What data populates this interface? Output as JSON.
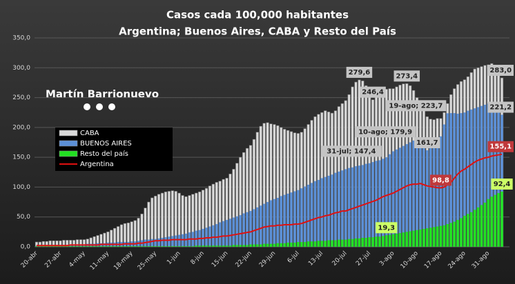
{
  "chart_data": {
    "type": "bar",
    "title": "Casos cada 100,000 habitantes",
    "subtitle": "Argentina; Buenos Aires, CABA y Resto del País",
    "brand": "Martín Barrionuevo",
    "ylim": [
      0,
      350
    ],
    "yticks": [
      {
        "value": 0,
        "label": "0,0"
      },
      {
        "value": 50,
        "label": "50,0"
      },
      {
        "value": 100,
        "label": "100,0"
      },
      {
        "value": 150,
        "label": "150,0"
      },
      {
        "value": 200,
        "label": "200,0"
      },
      {
        "value": 250,
        "label": "250,0"
      },
      {
        "value": 300,
        "label": "300,0"
      },
      {
        "value": 350,
        "label": "350,0"
      }
    ],
    "grid": true,
    "categories": [
      "20-abr",
      null,
      null,
      null,
      null,
      null,
      null,
      "27-abr",
      null,
      null,
      null,
      null,
      null,
      null,
      "4-may",
      null,
      null,
      null,
      null,
      null,
      null,
      "11-may",
      null,
      null,
      null,
      null,
      null,
      null,
      "18-may",
      null,
      null,
      null,
      null,
      null,
      null,
      "25-may",
      null,
      null,
      null,
      null,
      null,
      null,
      "1-jun",
      null,
      null,
      null,
      null,
      null,
      null,
      "8-jun",
      null,
      null,
      null,
      null,
      null,
      null,
      "15-jun",
      null,
      null,
      null,
      null,
      null,
      null,
      "22-jun",
      null,
      null,
      null,
      null,
      null,
      null,
      "29-jun",
      null,
      null,
      null,
      null,
      null,
      null,
      "6-jul",
      null,
      null,
      null,
      null,
      null,
      null,
      "13-jul",
      null,
      null,
      null,
      null,
      null,
      null,
      "20-jul",
      null,
      null,
      null,
      null,
      null,
      null,
      "27-jul",
      null,
      null,
      null,
      null,
      null,
      null,
      "3-ago",
      null,
      null,
      null,
      null,
      null,
      null,
      "10-ago",
      null,
      null,
      null,
      null,
      null,
      null,
      "17-ago",
      null,
      null,
      null,
      null,
      null,
      null,
      "24-ago",
      null,
      null,
      null,
      null,
      null,
      null,
      "31-ago",
      null,
      null,
      null,
      null
    ],
    "series": [
      {
        "name": "CABA",
        "color": "#d9d9d9",
        "kind": "bar",
        "values": [
          8,
          8,
          9,
          9,
          10,
          10,
          10,
          10,
          11,
          11,
          11,
          11,
          12,
          12,
          12,
          13,
          15,
          17,
          19,
          21,
          23,
          25,
          28,
          31,
          34,
          37,
          39,
          40,
          42,
          44,
          48,
          55,
          65,
          75,
          82,
          85,
          88,
          90,
          92,
          93,
          94,
          93,
          90,
          86,
          84,
          86,
          88,
          90,
          92,
          95,
          98,
          102,
          105,
          108,
          110,
          113,
          115,
          122,
          130,
          140,
          150,
          158,
          165,
          170,
          180,
          192,
          202,
          207,
          208,
          206,
          205,
          203,
          200,
          197,
          195,
          193,
          191,
          190,
          192,
          198,
          205,
          212,
          218,
          222,
          225,
          228,
          226,
          224,
          228,
          235,
          240,
          245,
          255,
          268,
          276,
          279.6,
          278,
          270,
          262,
          246.4,
          252,
          258,
          262,
          264,
          265,
          265,
          268,
          271,
          273,
          273.4,
          270,
          262,
          250,
          240,
          228,
          218,
          214,
          213,
          215,
          215,
          225,
          240,
          255,
          265,
          272,
          277,
          280,
          285,
          292,
          298,
          300,
          302,
          304,
          305,
          307,
          300,
          292,
          283
        ],
        "value_labels": [
          null,
          null,
          null,
          null,
          null,
          null,
          null,
          null,
          null,
          null,
          null,
          null,
          null,
          null,
          null,
          null,
          null,
          null,
          null,
          null,
          null,
          null,
          null,
          null,
          null,
          null,
          null,
          null,
          null,
          null,
          null,
          null,
          null,
          null,
          null,
          null,
          null,
          null,
          null,
          null,
          null,
          null,
          null,
          null,
          null,
          null,
          null,
          null,
          null,
          null,
          null,
          null,
          null,
          null,
          null,
          null,
          null,
          null,
          null,
          null,
          null,
          null,
          null,
          null,
          null,
          null,
          null,
          null,
          null,
          null,
          null,
          null,
          null,
          null,
          null,
          null,
          null,
          null,
          null,
          null,
          null,
          null,
          null,
          null,
          null,
          null,
          null,
          null,
          null,
          null,
          null,
          null,
          null,
          null,
          null,
          "279,6",
          null,
          null,
          null,
          "246,4",
          null,
          null,
          null,
          null,
          null,
          null,
          null,
          null,
          null,
          "273,4",
          null,
          null,
          null,
          null,
          null,
          null,
          null,
          null,
          null,
          null,
          null,
          null,
          null,
          null,
          null,
          null,
          null,
          null,
          null,
          null,
          null,
          null,
          null,
          null,
          null,
          null,
          null,
          "283,0"
        ]
      },
      {
        "name": "BUENOS AIRES",
        "color": "#5b8fd6",
        "kind": "bar",
        "values": [
          2,
          2,
          2,
          3,
          3,
          3,
          3,
          3,
          3,
          3,
          4,
          4,
          4,
          4,
          4,
          5,
          5,
          5,
          6,
          6,
          6,
          7,
          7,
          7,
          8,
          8,
          8,
          8,
          9,
          9,
          10,
          11,
          12,
          12,
          13,
          13,
          14,
          15,
          16,
          17,
          18,
          19,
          20,
          21,
          22,
          24,
          25,
          27,
          28,
          30,
          32,
          34,
          36,
          38,
          41,
          43,
          45,
          47,
          49,
          51,
          53,
          56,
          58,
          60,
          63,
          66,
          69,
          72,
          75,
          78,
          80,
          82,
          85,
          87,
          89,
          91,
          93,
          95,
          98,
          101,
          104,
          107,
          110,
          112,
          115,
          117,
          119,
          121,
          124,
          126,
          128,
          130,
          132,
          133,
          135,
          136,
          137,
          139,
          140,
          142,
          144,
          145,
          147.4,
          150,
          155,
          160,
          163,
          166,
          169,
          172,
          175,
          178,
          179.9,
          175,
          168,
          161.7,
          170,
          178,
          183,
          185,
          205,
          223.7,
          224,
          224,
          223,
          224,
          225,
          228,
          230,
          232,
          234,
          236,
          238,
          240,
          238,
          232,
          226,
          221.2
        ],
        "value_labels": [
          null,
          null,
          null,
          null,
          null,
          null,
          null,
          null,
          null,
          null,
          null,
          null,
          null,
          null,
          null,
          null,
          null,
          null,
          null,
          null,
          null,
          null,
          null,
          null,
          null,
          null,
          null,
          null,
          null,
          null,
          null,
          null,
          null,
          null,
          null,
          null,
          null,
          null,
          null,
          null,
          null,
          null,
          null,
          null,
          null,
          null,
          null,
          null,
          null,
          null,
          null,
          null,
          null,
          null,
          null,
          null,
          null,
          null,
          null,
          null,
          null,
          null,
          null,
          null,
          null,
          null,
          null,
          null,
          null,
          null,
          null,
          null,
          null,
          null,
          null,
          null,
          null,
          null,
          null,
          null,
          null,
          null,
          null,
          null,
          null,
          null,
          null,
          null,
          null,
          null,
          null,
          null,
          null,
          null,
          null,
          null,
          null,
          null,
          null,
          null,
          null,
          null,
          "31-jul; 147,4",
          null,
          null,
          null,
          null,
          null,
          null,
          null,
          null,
          null,
          "10-ago; 179,9",
          null,
          null,
          "161,7",
          null,
          null,
          null,
          null,
          null,
          "19-ago; 223,7",
          null,
          null,
          null,
          null,
          null,
          null,
          null,
          null,
          null,
          null,
          null,
          null,
          null,
          null,
          null,
          "221,2"
        ]
      },
      {
        "name": "Resto del país",
        "color": "#22e022",
        "kind": "bar",
        "values": [
          1,
          1,
          1,
          1,
          1,
          1,
          1,
          1,
          1,
          1,
          1,
          1,
          1,
          1,
          1,
          1,
          1,
          1,
          1,
          1,
          1,
          1,
          1,
          1,
          1,
          1,
          1,
          1,
          1,
          1,
          1,
          1,
          1,
          1,
          1,
          1,
          1,
          1,
          1,
          1,
          1,
          1,
          1,
          1,
          1,
          1,
          1,
          2,
          2,
          2,
          2,
          2,
          2,
          2,
          2,
          2,
          2,
          2,
          3,
          3,
          3,
          3,
          3,
          4,
          4,
          4,
          4,
          5,
          5,
          5,
          5,
          6,
          6,
          6,
          7,
          7,
          7,
          8,
          8,
          8,
          9,
          9,
          9,
          10,
          10,
          10,
          11,
          11,
          11,
          12,
          12,
          12,
          13,
          13,
          14,
          14,
          15,
          15,
          16,
          16,
          17,
          17,
          18,
          19.3,
          20,
          21,
          22,
          23,
          24,
          25,
          26,
          27,
          28,
          29,
          30,
          31,
          32,
          33,
          34,
          35,
          36,
          38,
          40,
          42,
          45,
          48,
          52,
          55,
          58,
          62,
          66,
          70,
          74,
          80,
          84,
          87,
          90,
          92.4
        ],
        "value_labels": [
          null,
          null,
          null,
          null,
          null,
          null,
          null,
          null,
          null,
          null,
          null,
          null,
          null,
          null,
          null,
          null,
          null,
          null,
          null,
          null,
          null,
          null,
          null,
          null,
          null,
          null,
          null,
          null,
          null,
          null,
          null,
          null,
          null,
          null,
          null,
          null,
          null,
          null,
          null,
          null,
          null,
          null,
          null,
          null,
          null,
          null,
          null,
          null,
          null,
          null,
          null,
          null,
          null,
          null,
          null,
          null,
          null,
          null,
          null,
          null,
          null,
          null,
          null,
          null,
          null,
          null,
          null,
          null,
          null,
          null,
          null,
          null,
          null,
          null,
          null,
          null,
          null,
          null,
          null,
          null,
          null,
          null,
          null,
          null,
          null,
          null,
          null,
          null,
          null,
          null,
          null,
          null,
          null,
          null,
          null,
          null,
          null,
          null,
          null,
          null,
          null,
          null,
          null,
          "19,3",
          null,
          null,
          null,
          null,
          null,
          null,
          null,
          null,
          null,
          null,
          null,
          null,
          null,
          null,
          null,
          null,
          null,
          null,
          null,
          null,
          null,
          null,
          null,
          null,
          null,
          null,
          null,
          null,
          null,
          null,
          null,
          null,
          null,
          "92,4"
        ]
      },
      {
        "name": "Argentina",
        "color": "#e01010",
        "kind": "line",
        "values": [
          2,
          2,
          2,
          2,
          2,
          2,
          2,
          2,
          2,
          2,
          3,
          3,
          3,
          3,
          3,
          3,
          3,
          3,
          3,
          4,
          4,
          4,
          4,
          4,
          4,
          4,
          5,
          5,
          5,
          5,
          6,
          6,
          7,
          8,
          9,
          10,
          10,
          11,
          11,
          11,
          12,
          12,
          12,
          12,
          12,
          13,
          13,
          13,
          14,
          14,
          15,
          15,
          16,
          16,
          17,
          18,
          18,
          19,
          20,
          21,
          22,
          23,
          24,
          25,
          27,
          29,
          31,
          33,
          34,
          35,
          35,
          36,
          36,
          37,
          37,
          37,
          38,
          38,
          39,
          41,
          43,
          45,
          47,
          49,
          50,
          52,
          53,
          55,
          57,
          58,
          60,
          60,
          62,
          64,
          66,
          68,
          70,
          72,
          74,
          76,
          78,
          81,
          84,
          86,
          88,
          90,
          93,
          96,
          99,
          102,
          104,
          105,
          105,
          106,
          104,
          102,
          101,
          100,
          99,
          98.8,
          100,
          104,
          108,
          115,
          122,
          127,
          130,
          134,
          138,
          142,
          145,
          147,
          149,
          150,
          152,
          153,
          154,
          155.1
        ],
        "value_labels": [
          null,
          null,
          null,
          null,
          null,
          null,
          null,
          null,
          null,
          null,
          null,
          null,
          null,
          null,
          null,
          null,
          null,
          null,
          null,
          null,
          null,
          null,
          null,
          null,
          null,
          null,
          null,
          null,
          null,
          null,
          null,
          null,
          null,
          null,
          null,
          null,
          null,
          null,
          null,
          null,
          null,
          null,
          null,
          null,
          null,
          null,
          null,
          null,
          null,
          null,
          null,
          null,
          null,
          null,
          null,
          null,
          null,
          null,
          null,
          null,
          null,
          null,
          null,
          null,
          null,
          null,
          null,
          null,
          null,
          null,
          null,
          null,
          null,
          null,
          null,
          null,
          null,
          null,
          null,
          null,
          null,
          null,
          null,
          null,
          null,
          null,
          null,
          null,
          null,
          null,
          null,
          null,
          null,
          null,
          null,
          null,
          null,
          null,
          null,
          null,
          null,
          null,
          null,
          null,
          null,
          null,
          null,
          null,
          null,
          null,
          null,
          null,
          null,
          null,
          null,
          null,
          null,
          null,
          null,
          "98,8",
          null,
          null,
          null,
          null,
          null,
          null,
          null,
          null,
          null,
          null,
          null,
          null,
          null,
          null,
          null,
          null,
          null,
          "155,1"
        ]
      }
    ]
  }
}
